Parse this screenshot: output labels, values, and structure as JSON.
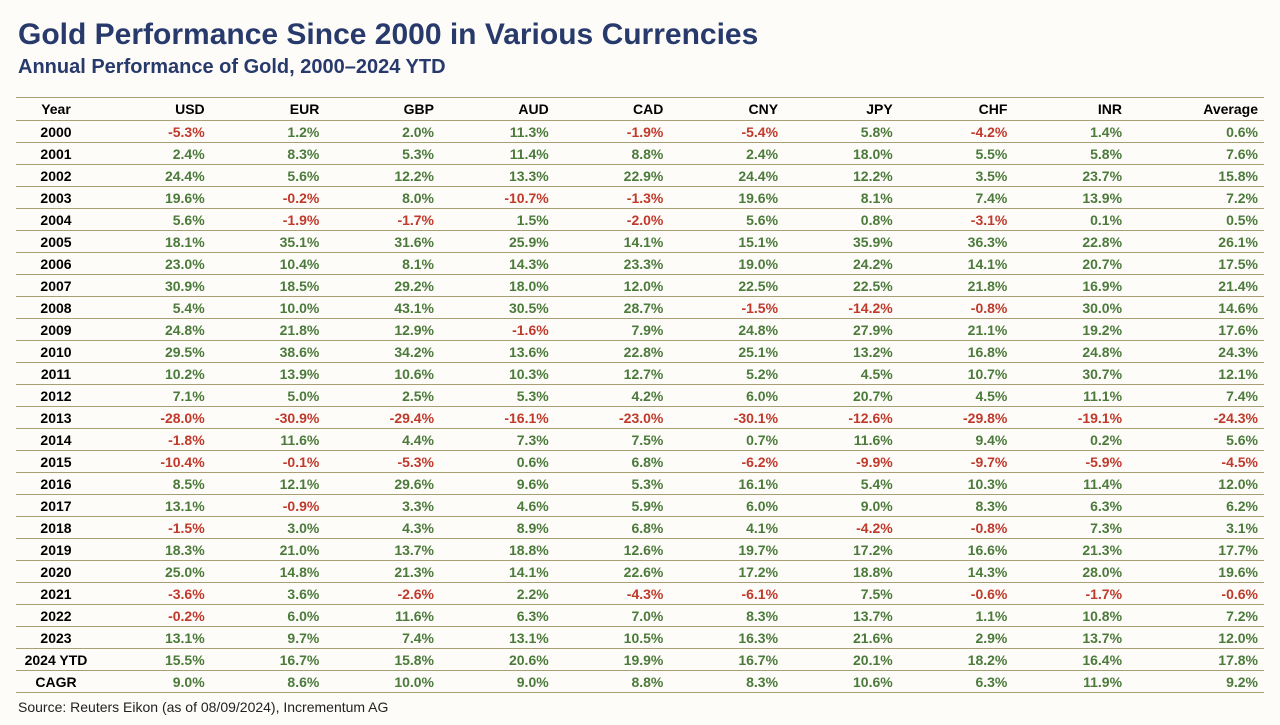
{
  "title": "Gold Performance Since 2000 in Various Currencies",
  "subtitle": "Annual Performance of Gold, 2000–2024 YTD",
  "source": "Source: Reuters Eikon (as of 08/09/2024), Incrementum AG",
  "colors": {
    "heading": "#273a6b",
    "border": "#a89f75",
    "positive": "#4b7a3a",
    "negative": "#c0392b",
    "background": "#fdfcf9"
  },
  "columns": [
    "Year",
    "USD",
    "EUR",
    "GBP",
    "AUD",
    "CAD",
    "CNY",
    "JPY",
    "CHF",
    "INR",
    "Average"
  ],
  "rows": [
    {
      "year": "2000",
      "values": [
        -5.3,
        1.2,
        2.0,
        11.3,
        -1.9,
        -5.4,
        5.8,
        -4.2,
        1.4
      ],
      "avg": 0.6
    },
    {
      "year": "2001",
      "values": [
        2.4,
        8.3,
        5.3,
        11.4,
        8.8,
        2.4,
        18.0,
        5.5,
        5.8
      ],
      "avg": 7.6
    },
    {
      "year": "2002",
      "values": [
        24.4,
        5.6,
        12.2,
        13.3,
        22.9,
        24.4,
        12.2,
        3.5,
        23.7
      ],
      "avg": 15.8
    },
    {
      "year": "2003",
      "values": [
        19.6,
        -0.2,
        8.0,
        -10.7,
        -1.3,
        19.6,
        8.1,
        7.4,
        13.9
      ],
      "avg": 7.2
    },
    {
      "year": "2004",
      "values": [
        5.6,
        -1.9,
        -1.7,
        1.5,
        -2.0,
        5.6,
        0.8,
        -3.1,
        0.1
      ],
      "avg": 0.5
    },
    {
      "year": "2005",
      "values": [
        18.1,
        35.1,
        31.6,
        25.9,
        14.1,
        15.1,
        35.9,
        36.3,
        22.8
      ],
      "avg": 26.1
    },
    {
      "year": "2006",
      "values": [
        23.0,
        10.4,
        8.1,
        14.3,
        23.3,
        19.0,
        24.2,
        14.1,
        20.7
      ],
      "avg": 17.5
    },
    {
      "year": "2007",
      "values": [
        30.9,
        18.5,
        29.2,
        18.0,
        12.0,
        22.5,
        22.5,
        21.8,
        16.9
      ],
      "avg": 21.4
    },
    {
      "year": "2008",
      "values": [
        5.4,
        10.0,
        43.1,
        30.5,
        28.7,
        -1.5,
        -14.2,
        -0.8,
        30.0
      ],
      "avg": 14.6
    },
    {
      "year": "2009",
      "values": [
        24.8,
        21.8,
        12.9,
        -1.6,
        7.9,
        24.8,
        27.9,
        21.1,
        19.2
      ],
      "avg": 17.6
    },
    {
      "year": "2010",
      "values": [
        29.5,
        38.6,
        34.2,
        13.6,
        22.8,
        25.1,
        13.2,
        16.8,
        24.8
      ],
      "avg": 24.3
    },
    {
      "year": "2011",
      "values": [
        10.2,
        13.9,
        10.6,
        10.3,
        12.7,
        5.2,
        4.5,
        10.7,
        30.7
      ],
      "avg": 12.1
    },
    {
      "year": "2012",
      "values": [
        7.1,
        5.0,
        2.5,
        5.3,
        4.2,
        6.0,
        20.7,
        4.5,
        11.1
      ],
      "avg": 7.4
    },
    {
      "year": "2013",
      "values": [
        -28.0,
        -30.9,
        -29.4,
        -16.1,
        -23.0,
        -30.1,
        -12.6,
        -29.8,
        -19.1
      ],
      "avg": -24.3
    },
    {
      "year": "2014",
      "values": [
        -1.8,
        11.6,
        4.4,
        7.3,
        7.5,
        0.7,
        11.6,
        9.4,
        0.2
      ],
      "avg": 5.6
    },
    {
      "year": "2015",
      "values": [
        -10.4,
        -0.1,
        -5.3,
        0.6,
        6.8,
        -6.2,
        -9.9,
        -9.7,
        -5.9
      ],
      "avg": -4.5
    },
    {
      "year": "2016",
      "values": [
        8.5,
        12.1,
        29.6,
        9.6,
        5.3,
        16.1,
        5.4,
        10.3,
        11.4
      ],
      "avg": 12.0
    },
    {
      "year": "2017",
      "values": [
        13.1,
        -0.9,
        3.3,
        4.6,
        5.9,
        6.0,
        9.0,
        8.3,
        6.3
      ],
      "avg": 6.2
    },
    {
      "year": "2018",
      "values": [
        -1.5,
        3.0,
        4.3,
        8.9,
        6.8,
        4.1,
        -4.2,
        -0.8,
        7.3
      ],
      "avg": 3.1
    },
    {
      "year": "2019",
      "values": [
        18.3,
        21.0,
        13.7,
        18.8,
        12.6,
        19.7,
        17.2,
        16.6,
        21.3
      ],
      "avg": 17.7
    },
    {
      "year": "2020",
      "values": [
        25.0,
        14.8,
        21.3,
        14.1,
        22.6,
        17.2,
        18.8,
        14.3,
        28.0
      ],
      "avg": 19.6
    },
    {
      "year": "2021",
      "values": [
        -3.6,
        3.6,
        -2.6,
        2.2,
        -4.3,
        -6.1,
        7.5,
        -0.6,
        -1.7
      ],
      "avg": -0.6
    },
    {
      "year": "2022",
      "values": [
        -0.2,
        6.0,
        11.6,
        6.3,
        7.0,
        8.3,
        13.7,
        1.1,
        10.8
      ],
      "avg": 7.2
    },
    {
      "year": "2023",
      "values": [
        13.1,
        9.7,
        7.4,
        13.1,
        10.5,
        16.3,
        21.6,
        2.9,
        13.7
      ],
      "avg": 12.0
    },
    {
      "year": "2024 YTD",
      "values": [
        15.5,
        16.7,
        15.8,
        20.6,
        19.9,
        16.7,
        20.1,
        18.2,
        16.4
      ],
      "avg": 17.8
    },
    {
      "year": "CAGR",
      "values": [
        9.0,
        8.6,
        10.0,
        9.0,
        8.8,
        8.3,
        10.6,
        6.3,
        11.9
      ],
      "avg": 9.2
    }
  ]
}
